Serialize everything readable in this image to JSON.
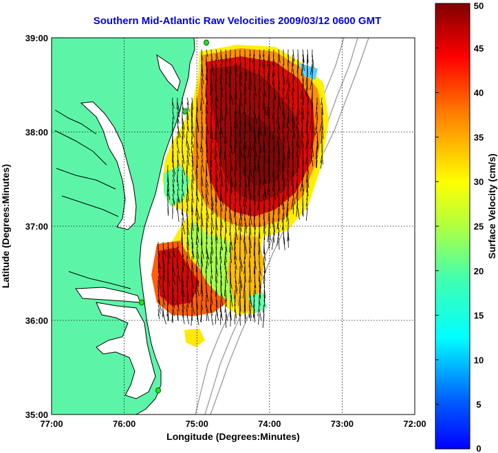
{
  "title": "Southern Mid-Atlantic Raw Velocities 2009/03/12 0600 GMT",
  "map": {
    "xlabel": "Longitude (Degrees:Minutes)",
    "ylabel": "Latitude (Degrees:Minutes)",
    "lon_ticks": [
      "77:00",
      "76:00",
      "75:00",
      "74:00",
      "73:00",
      "72:00"
    ],
    "lat_ticks": [
      "39:00",
      "38:00",
      "37:00",
      "36:00",
      "35:00"
    ],
    "lon_range": [
      -77,
      -72
    ],
    "lat_range": [
      35,
      39
    ],
    "grid": true,
    "land_color": "#5cf5a8",
    "coast_color": "#000000",
    "bathymetry_color": "#9a9a9a",
    "station_marker_color": "#22dd22",
    "vector_color": "#000000"
  },
  "colorbar": {
    "label": "Surface Velocity (cm/s)",
    "ticks": [
      "0",
      "5",
      "10",
      "15",
      "20",
      "25",
      "30",
      "35",
      "40",
      "45",
      "50"
    ],
    "range": [
      0,
      50
    ],
    "colormap": "jet"
  }
}
